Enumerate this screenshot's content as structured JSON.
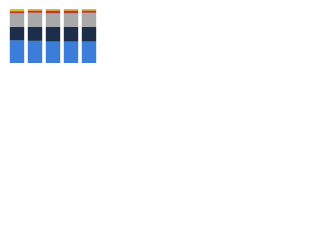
{
  "chart_data": {
    "type": "stacked_bar",
    "categories": [
      null,
      null,
      null,
      null,
      null
    ],
    "series": [
      {
        "color": "#3b7dd8",
        "values": [
          42,
          41,
          40,
          40,
          40
        ]
      },
      {
        "color": "#1c2e4a",
        "values": [
          25,
          26,
          27,
          27,
          27
        ]
      },
      {
        "color": "#a9a9a9",
        "values": [
          25,
          26,
          25,
          25,
          26
        ]
      },
      {
        "color": "#c0392b",
        "values": [
          4,
          4,
          5,
          5,
          4
        ]
      },
      {
        "color": "#d4c12f",
        "values": [
          4,
          3,
          3,
          3,
          3
        ]
      }
    ],
    "ylim": [
      0,
      100
    ]
  }
}
